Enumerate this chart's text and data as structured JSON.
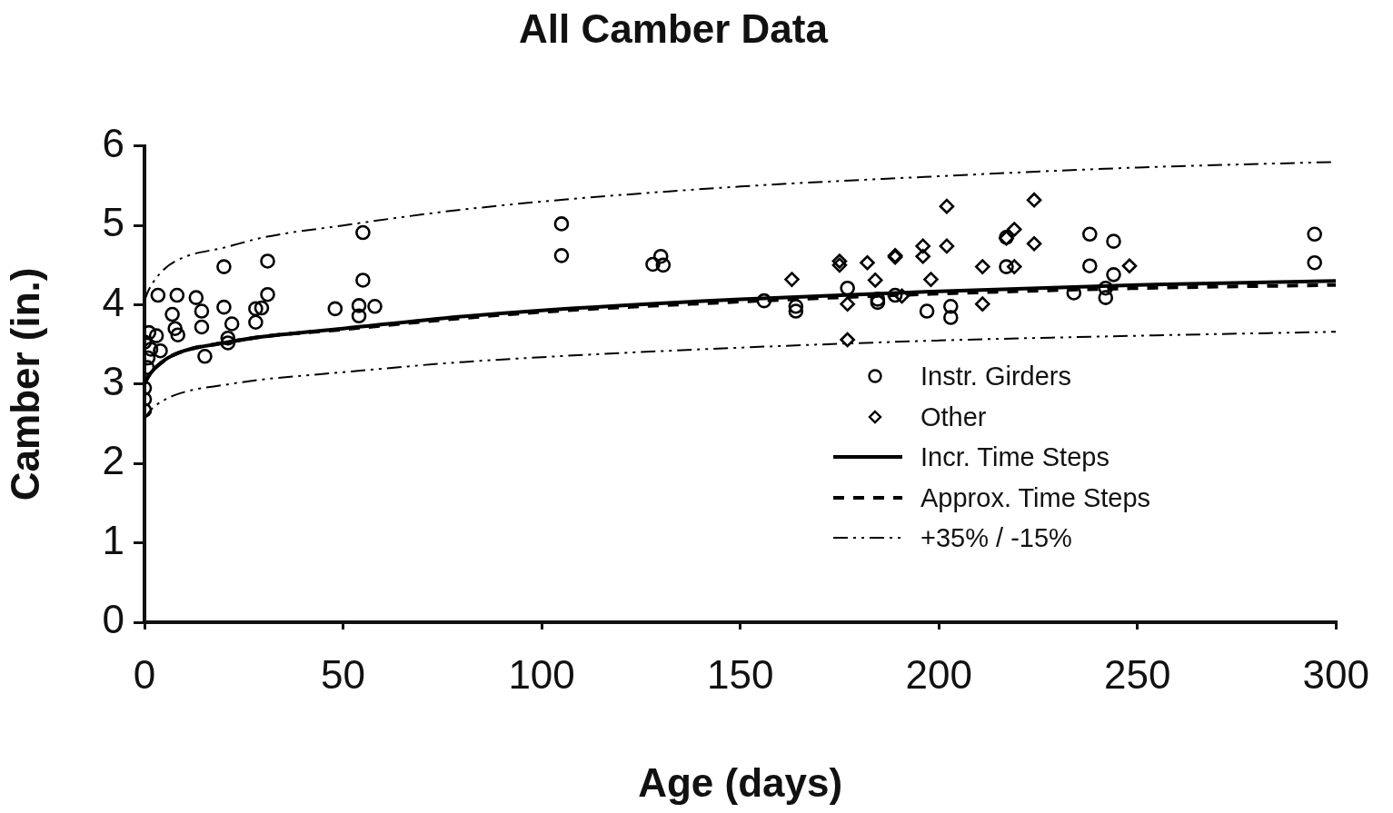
{
  "chart_data": {
    "type": "scatter",
    "title": "All Camber Data",
    "xlabel": "Age (days)",
    "ylabel": "Camber (in.)",
    "xlim": [
      0,
      300
    ],
    "xticks": [
      0,
      50,
      100,
      150,
      200,
      250,
      300
    ],
    "ylim": [
      0,
      6
    ],
    "yticks": [
      0,
      1,
      2,
      3,
      4,
      5,
      6
    ],
    "grid": false,
    "legend": "right",
    "series": [
      {
        "name": "Instr. Girders",
        "type": "scatter",
        "marker": "circle",
        "color": "#000000",
        "x": [
          0,
          1.1,
          0,
          0,
          0,
          0.7,
          0.9,
          1.6,
          3,
          4,
          3.4,
          8.2,
          7,
          7.7,
          8.4,
          13,
          14.4,
          14.4,
          15.2,
          20,
          20,
          22,
          21,
          21,
          31,
          31,
          28,
          29.5,
          28,
          48,
          55,
          55,
          54,
          54,
          58,
          105,
          105,
          128,
          130,
          130.6,
          156,
          164,
          164,
          177,
          184.6,
          184.6,
          189,
          197,
          203,
          203,
          217,
          217,
          238,
          238,
          244,
          244,
          234,
          242,
          242,
          294.6,
          294.6
        ],
        "values": [
          3.53,
          3.65,
          2.67,
          2.81,
          2.95,
          3.21,
          3.33,
          3.44,
          3.61,
          3.42,
          4.12,
          4.12,
          3.88,
          3.7,
          3.62,
          4.09,
          3.92,
          3.72,
          3.35,
          4.48,
          3.97,
          3.76,
          3.58,
          3.52,
          4.55,
          4.13,
          3.95,
          3.96,
          3.78,
          3.95,
          4.91,
          4.31,
          3.99,
          3.86,
          3.98,
          5.02,
          4.62,
          4.51,
          4.61,
          4.5,
          4.05,
          3.98,
          3.92,
          4.21,
          4.07,
          4.03,
          4.12,
          3.92,
          3.98,
          3.84,
          4.48,
          4.85,
          4.89,
          4.49,
          4.8,
          4.38,
          4.15,
          4.09,
          4.21,
          4.89,
          4.53
        ]
      },
      {
        "name": "Other",
        "type": "scatter",
        "marker": "diamond",
        "color": "#000000",
        "x": [
          163,
          175,
          175,
          182,
          184,
          177,
          177,
          189,
          189,
          190.7,
          196,
          196,
          198,
          202,
          202,
          211,
          211,
          217,
          219,
          219,
          224,
          224,
          248
        ],
        "values": [
          4.32,
          4.55,
          4.5,
          4.53,
          4.31,
          4.01,
          3.56,
          4.62,
          4.6,
          4.11,
          4.74,
          4.61,
          4.32,
          5.24,
          4.74,
          4.48,
          4.01,
          4.84,
          4.95,
          4.48,
          5.32,
          4.77,
          4.49
        ]
      },
      {
        "name": "Incr. Time Steps",
        "type": "line",
        "marker": "none",
        "line_style": "solid",
        "color": "#000000",
        "x": [
          0,
          1,
          5,
          10,
          20,
          30,
          50,
          75,
          100,
          150,
          200,
          250,
          300
        ],
        "values": [
          3.0,
          3.1,
          3.3,
          3.42,
          3.52,
          3.6,
          3.7,
          3.83,
          3.93,
          4.07,
          4.17,
          4.25,
          4.3
        ]
      },
      {
        "name": "Approx. Time Steps",
        "type": "line",
        "marker": "none",
        "line_style": "dashed",
        "color": "#000000",
        "x": [
          0,
          1,
          5,
          10,
          20,
          30,
          50,
          75,
          100,
          150,
          200,
          250,
          300
        ],
        "values": [
          3.0,
          3.1,
          3.3,
          3.42,
          3.52,
          3.6,
          3.69,
          3.81,
          3.91,
          4.04,
          4.14,
          4.21,
          4.25
        ]
      },
      {
        "name": "+35% / -15%",
        "type": "line",
        "marker": "none",
        "line_style": "dotted",
        "color": "#000000",
        "x": [
          0,
          1,
          5,
          10,
          20,
          30,
          50,
          75,
          100,
          150,
          200,
          250,
          300
        ],
        "values": [
          4.05,
          4.18,
          4.45,
          4.6,
          4.72,
          4.85,
          5.0,
          5.17,
          5.3,
          5.49,
          5.62,
          5.73,
          5.8
        ]
      },
      {
        "type": "line",
        "marker": "none",
        "line_style": "dotted",
        "color": "#000000",
        "x": [
          0,
          1,
          5,
          10,
          20,
          30,
          50,
          75,
          100,
          150,
          200,
          250,
          300
        ],
        "values": [
          2.55,
          2.64,
          2.8,
          2.9,
          2.99,
          3.06,
          3.15,
          3.26,
          3.34,
          3.46,
          3.55,
          3.61,
          3.66
        ]
      }
    ]
  }
}
